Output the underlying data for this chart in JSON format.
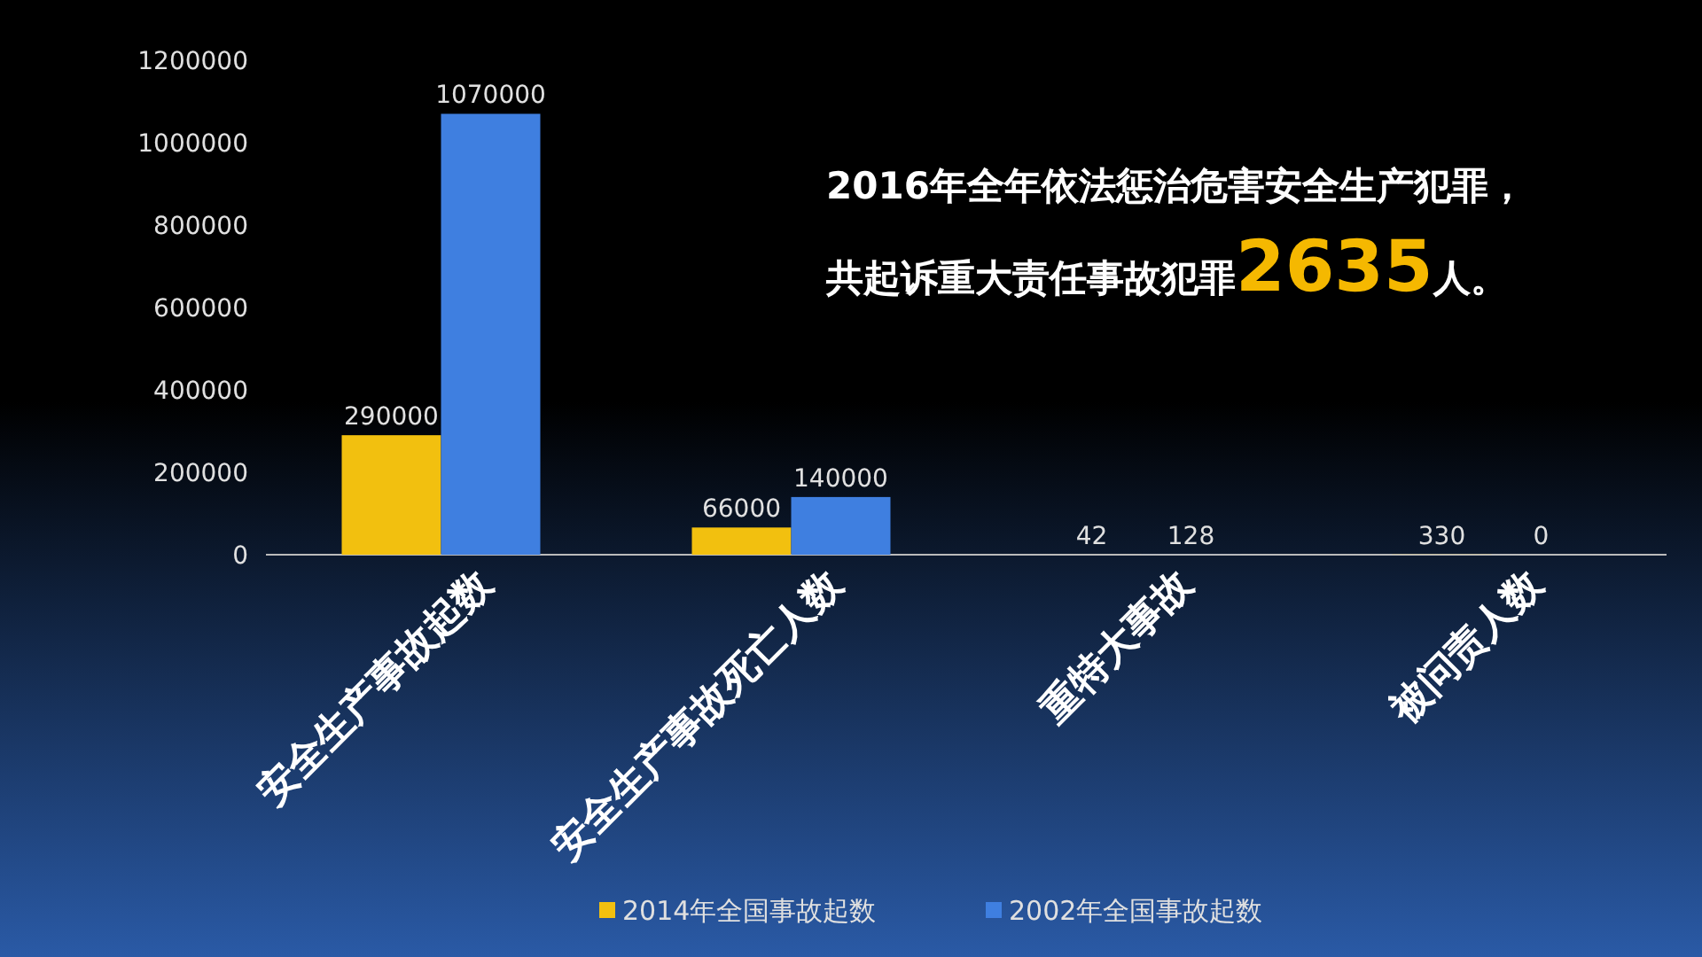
{
  "chart_data": {
    "type": "bar",
    "categories": [
      "安全生产事故起数",
      "安全生产事故死亡人数",
      "重特大事故",
      "被问责人数"
    ],
    "series": [
      {
        "name": "2014年全国事故起数",
        "color": "#f2c00f",
        "values": [
          290000,
          66000,
          42,
          330
        ]
      },
      {
        "name": "2002年全国事故起数",
        "color": "#3f7fe0",
        "values": [
          1070000,
          140000,
          128,
          0
        ]
      }
    ],
    "ylim": [
      0,
      1200000
    ],
    "yticks": [
      0,
      200000,
      400000,
      600000,
      800000,
      1000000,
      1200000
    ],
    "data_labels": true,
    "legend": "bottom",
    "grid": false,
    "annotations": [
      "2016年全年依法惩治危害安全生产犯罪，",
      "共起诉重大责任事故犯罪**2635**人。"
    ]
  }
}
